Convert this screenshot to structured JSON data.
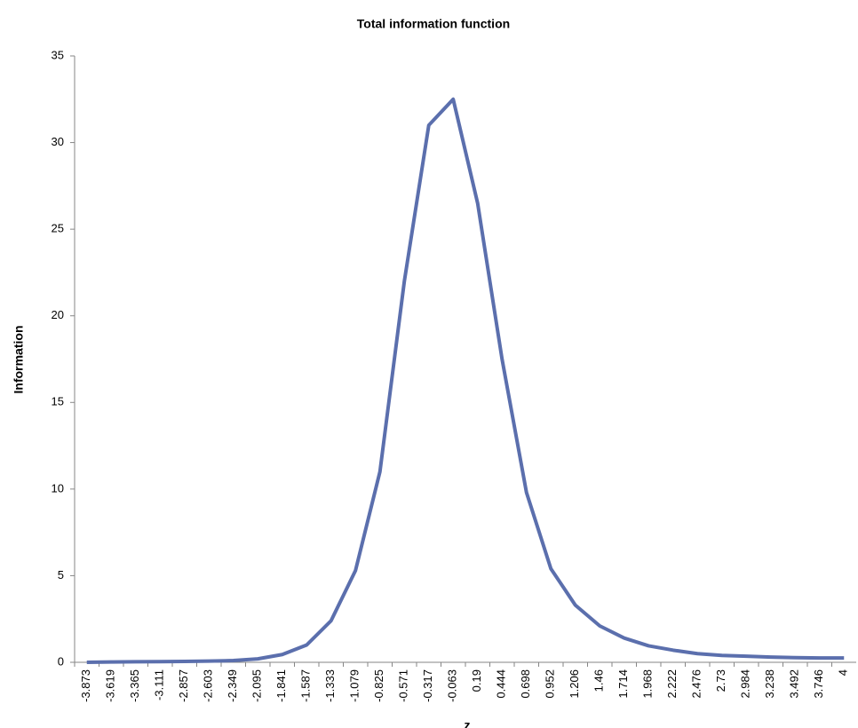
{
  "chart_data": {
    "type": "line",
    "title": "Total information function",
    "x_label": "z",
    "y_label": "Information",
    "categories": [
      "-3.873",
      "-3.619",
      "-3.365",
      "-3.111",
      "-2.857",
      "-2.603",
      "-2.349",
      "-2.095",
      "-1.841",
      "-1.587",
      "-1.333",
      "-1.079",
      "-0.825",
      "-0.571",
      "-0.317",
      "-0.063",
      "0.19",
      "0.444",
      "0.698",
      "0.952",
      "1.206",
      "1.46",
      "1.714",
      "1.968",
      "2.222",
      "2.476",
      "2.73",
      "2.984",
      "3.238",
      "3.492",
      "3.746",
      "4"
    ],
    "series": [
      {
        "name": "Information",
        "color": "#5b6fad",
        "values": [
          0.0,
          0.02,
          0.03,
          0.04,
          0.05,
          0.07,
          0.1,
          0.2,
          0.45,
          1.0,
          2.4,
          5.3,
          11,
          22,
          31,
          32.5,
          26.5,
          17.5,
          9.8,
          5.4,
          3.3,
          2.1,
          1.4,
          0.95,
          0.7,
          0.5,
          0.4,
          0.35,
          0.3,
          0.27,
          0.25,
          0.25
        ]
      }
    ],
    "ylim": [
      0,
      35
    ],
    "yticks": [
      0,
      5,
      10,
      15,
      20,
      25,
      30,
      35
    ],
    "grid": false
  }
}
